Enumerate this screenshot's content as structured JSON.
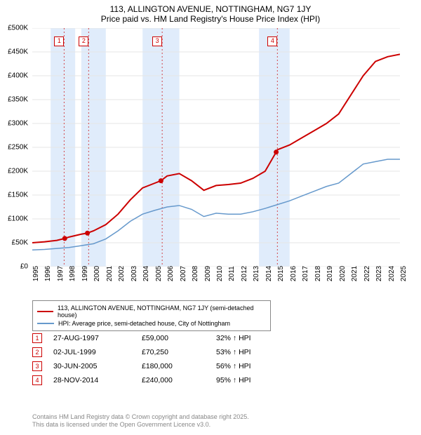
{
  "title": "113, ALLINGTON AVENUE, NOTTINGHAM, NG7 1JY",
  "subtitle": "Price paid vs. HM Land Registry's House Price Index (HPI)",
  "chart": {
    "type": "line",
    "background_color": "#ffffff",
    "grid_color": "#e6e6e6",
    "band_color": "#e0ecfb",
    "bands_x": [
      [
        1996.5,
        1998.5
      ],
      [
        1999,
        2001
      ],
      [
        2004,
        2007
      ],
      [
        2013.5,
        2016
      ]
    ],
    "ylim": [
      0,
      500000
    ],
    "ytick_step": 50000,
    "ytick_labels": [
      "£0",
      "£50K",
      "£100K",
      "£150K",
      "£200K",
      "£250K",
      "£300K",
      "£350K",
      "£400K",
      "£450K",
      "£500K"
    ],
    "xlim": [
      1995,
      2025
    ],
    "xtick_step": 1,
    "xtick_labels": [
      "1995",
      "1996",
      "1997",
      "1998",
      "1999",
      "2000",
      "2001",
      "2002",
      "2003",
      "2004",
      "2005",
      "2006",
      "2007",
      "2008",
      "2009",
      "2010",
      "2011",
      "2012",
      "2013",
      "2014",
      "2015",
      "2016",
      "2017",
      "2018",
      "2019",
      "2020",
      "2021",
      "2022",
      "2023",
      "2024",
      "2025"
    ],
    "series": [
      {
        "name": "113, ALLINGTON AVENUE, NOTTINGHAM, NG7 1JY (semi-detached house)",
        "color": "#cc0000",
        "line_width": 2,
        "points": [
          [
            1995,
            50000
          ],
          [
            1996,
            52000
          ],
          [
            1997,
            55000
          ],
          [
            1997.65,
            59000
          ],
          [
            1998,
            62000
          ],
          [
            1999,
            68000
          ],
          [
            1999.5,
            70250
          ],
          [
            2000,
            75000
          ],
          [
            2001,
            88000
          ],
          [
            2002,
            110000
          ],
          [
            2003,
            140000
          ],
          [
            2004,
            165000
          ],
          [
            2005,
            175000
          ],
          [
            2005.5,
            180000
          ],
          [
            2006,
            190000
          ],
          [
            2007,
            195000
          ],
          [
            2008,
            180000
          ],
          [
            2009,
            160000
          ],
          [
            2010,
            170000
          ],
          [
            2011,
            172000
          ],
          [
            2012,
            175000
          ],
          [
            2013,
            185000
          ],
          [
            2014,
            200000
          ],
          [
            2014.9,
            240000
          ],
          [
            2015,
            245000
          ],
          [
            2016,
            255000
          ],
          [
            2017,
            270000
          ],
          [
            2018,
            285000
          ],
          [
            2019,
            300000
          ],
          [
            2020,
            320000
          ],
          [
            2021,
            360000
          ],
          [
            2022,
            400000
          ],
          [
            2023,
            430000
          ],
          [
            2024,
            440000
          ],
          [
            2025,
            445000
          ]
        ],
        "sale_markers": [
          {
            "x": 1997.65,
            "y": 59000
          },
          {
            "x": 1999.5,
            "y": 70250
          },
          {
            "x": 2005.5,
            "y": 180000
          },
          {
            "x": 2014.9,
            "y": 240000
          }
        ]
      },
      {
        "name": "HPI: Average price, semi-detached house, City of Nottingham",
        "color": "#6699cc",
        "line_width": 1.5,
        "points": [
          [
            1995,
            35000
          ],
          [
            1996,
            36000
          ],
          [
            1997,
            38000
          ],
          [
            1998,
            40000
          ],
          [
            1999,
            44000
          ],
          [
            2000,
            48000
          ],
          [
            2001,
            58000
          ],
          [
            2002,
            75000
          ],
          [
            2003,
            95000
          ],
          [
            2004,
            110000
          ],
          [
            2005,
            118000
          ],
          [
            2006,
            125000
          ],
          [
            2007,
            128000
          ],
          [
            2008,
            120000
          ],
          [
            2009,
            105000
          ],
          [
            2010,
            112000
          ],
          [
            2011,
            110000
          ],
          [
            2012,
            110000
          ],
          [
            2013,
            115000
          ],
          [
            2014,
            122000
          ],
          [
            2015,
            130000
          ],
          [
            2016,
            138000
          ],
          [
            2017,
            148000
          ],
          [
            2018,
            158000
          ],
          [
            2019,
            168000
          ],
          [
            2020,
            175000
          ],
          [
            2021,
            195000
          ],
          [
            2022,
            215000
          ],
          [
            2023,
            220000
          ],
          [
            2024,
            225000
          ],
          [
            2025,
            225000
          ]
        ]
      }
    ],
    "marker_boxes": [
      {
        "label": "1",
        "x": 1997.2
      },
      {
        "label": "2",
        "x": 1999.2
      },
      {
        "label": "3",
        "x": 2005.2
      },
      {
        "label": "4",
        "x": 2014.6
      }
    ],
    "marker_vline_color": "#cc0000",
    "marker_vline_dash": "2,3"
  },
  "legend": [
    "113, ALLINGTON AVENUE, NOTTINGHAM, NG7 1JY (semi-detached house)",
    "HPI: Average price, semi-detached house, City of Nottingham"
  ],
  "sales": [
    {
      "n": "1",
      "date": "27-AUG-1997",
      "price": "£59,000",
      "hpi": "32% ↑ HPI"
    },
    {
      "n": "2",
      "date": "02-JUL-1999",
      "price": "£70,250",
      "hpi": "53% ↑ HPI"
    },
    {
      "n": "3",
      "date": "30-JUN-2005",
      "price": "£180,000",
      "hpi": "56% ↑ HPI"
    },
    {
      "n": "4",
      "date": "28-NOV-2014",
      "price": "£240,000",
      "hpi": "95% ↑ HPI"
    }
  ],
  "footer_line1": "Contains HM Land Registry data © Crown copyright and database right 2025.",
  "footer_line2": "This data is licensed under the Open Government Licence v3.0."
}
